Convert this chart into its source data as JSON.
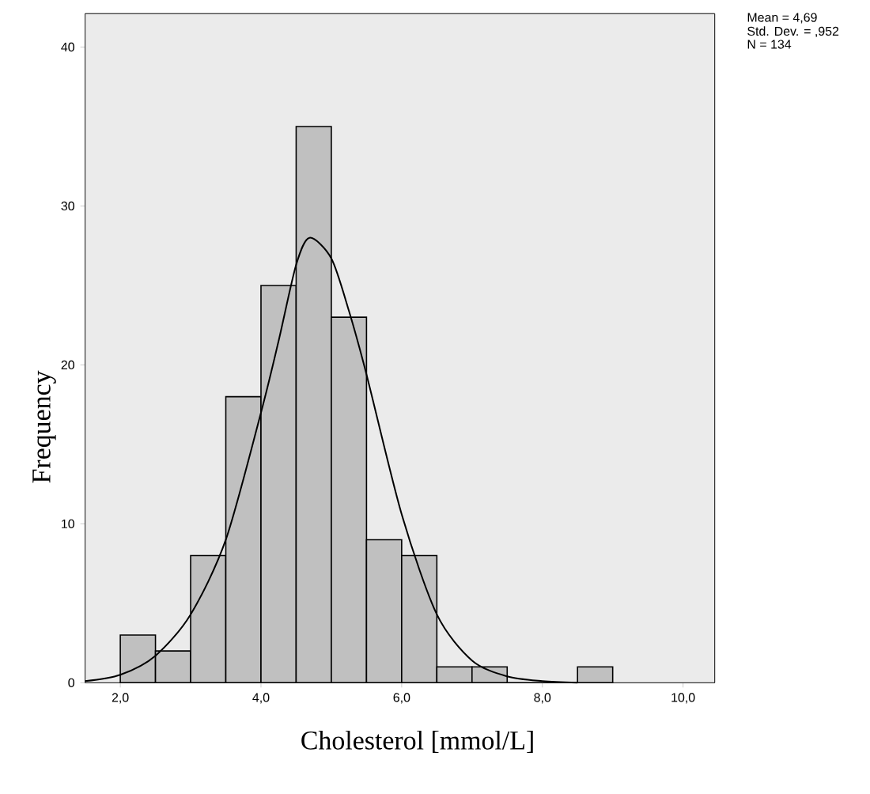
{
  "chart_data": {
    "type": "histogram",
    "xlabel": "Cholesterol [mmol/L]",
    "ylabel": "Frequency",
    "bins": [
      2.0,
      2.5,
      3.0,
      3.5,
      4.0,
      4.5,
      5.0,
      5.5,
      6.0,
      6.5,
      7.0,
      7.5,
      8.0,
      8.5,
      9.0
    ],
    "values": [
      3,
      2,
      8,
      18,
      25,
      35,
      23,
      9,
      8,
      1,
      1,
      0,
      0,
      1
    ],
    "color": "#c0c0c0",
    "series": [
      {
        "type": "line",
        "color": "#000000",
        "x": [
          1.5,
          2.0,
          2.5,
          3.0,
          3.5,
          4.0,
          4.25,
          4.5,
          4.69,
          5.0,
          5.25,
          5.5,
          6.0,
          6.5,
          7.0,
          7.5,
          8.0,
          8.5
        ],
        "values": [
          0.1,
          0.5,
          1.7,
          4.3,
          9.0,
          17.0,
          21.5,
          26.3,
          28.0,
          26.7,
          23.4,
          19.4,
          10.6,
          4.3,
          1.4,
          0.4,
          0.1,
          0.0
        ]
      }
    ],
    "xlim": [
      1.5,
      10.45
    ],
    "ylim": [
      0,
      42.1
    ],
    "xticks": [
      {
        "value": 2,
        "label": "2,0"
      },
      {
        "value": 4,
        "label": "4,0"
      },
      {
        "value": 6,
        "label": "6,0"
      },
      {
        "value": 8,
        "label": "8,0"
      },
      {
        "value": 10,
        "label": "10,0"
      }
    ],
    "yticks": [
      0,
      10,
      20,
      30,
      40
    ],
    "annotations": [
      "Mean = 4,69",
      "Std. Dev. = ,952",
      "N = 134"
    ]
  }
}
